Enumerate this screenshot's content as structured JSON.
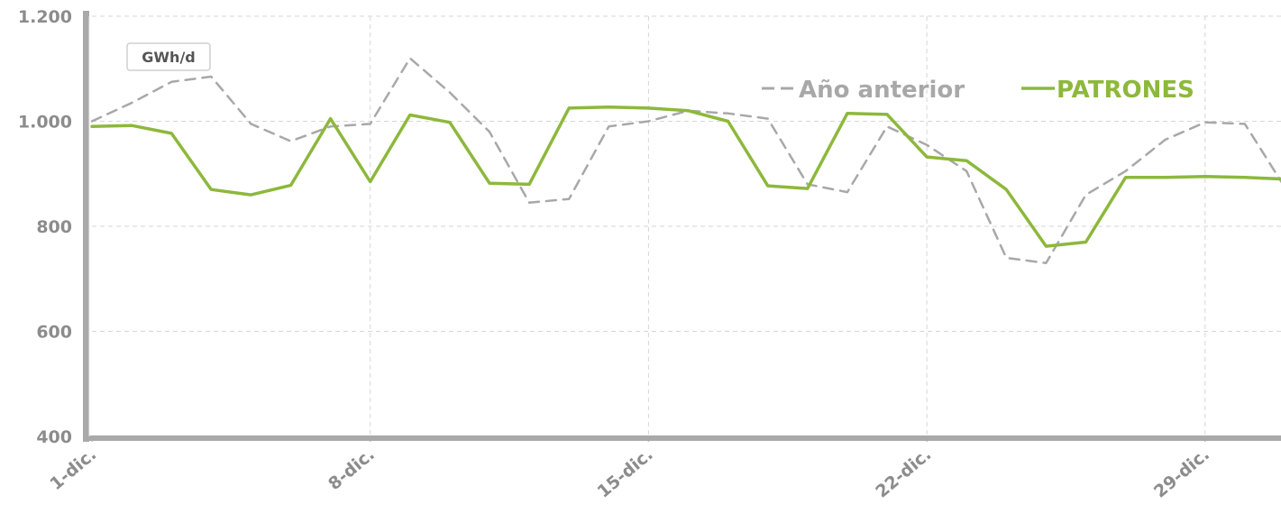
{
  "chart_data": {
    "type": "line",
    "unit_label": "GWh/d",
    "x": [
      "1-dic.",
      "2-dic.",
      "3-dic.",
      "4-dic.",
      "5-dic.",
      "6-dic.",
      "7-dic.",
      "8-dic.",
      "9-dic.",
      "10-dic.",
      "11-dic.",
      "12-dic.",
      "13-dic.",
      "14-dic.",
      "15-dic.",
      "16-dic.",
      "17-dic.",
      "18-dic.",
      "19-dic.",
      "20-dic.",
      "21-dic.",
      "22-dic.",
      "23-dic.",
      "24-dic.",
      "25-dic.",
      "26-dic.",
      "27-dic.",
      "28-dic.",
      "29-dic.",
      "30-dic.",
      "31-dic."
    ],
    "x_tick_labels": [
      "1-dic.",
      "8-dic.",
      "15-dic.",
      "22-dic.",
      "29-dic."
    ],
    "y_tick_labels": [
      "1.200",
      "1.000",
      "800",
      "600",
      "400"
    ],
    "y_ticks": [
      1200,
      1000,
      800,
      600,
      400
    ],
    "ylim": [
      400,
      1200
    ],
    "grid": true,
    "legend_position": "top-right",
    "series": [
      {
        "name": "Año anterior",
        "color": "#a8a8a8",
        "dash": true,
        "values": [
          1000,
          1035,
          1075,
          1085,
          995,
          962,
          990,
          995,
          1120,
          1055,
          980,
          845,
          852,
          990,
          1000,
          1020,
          1015,
          1005,
          880,
          865,
          990,
          955,
          905,
          740,
          730,
          860,
          905,
          965,
          998,
          995,
          875
        ]
      },
      {
        "name": "PATRONES",
        "color": "#8db83c",
        "dash": false,
        "values": [
          990,
          992,
          977,
          870,
          860,
          878,
          1005,
          885,
          1012,
          998,
          882,
          880,
          1025,
          1027,
          1025,
          1020,
          1000,
          877,
          872,
          1015,
          1013,
          932,
          925,
          870,
          762,
          770,
          893,
          893,
          895,
          893,
          890
        ]
      }
    ]
  }
}
